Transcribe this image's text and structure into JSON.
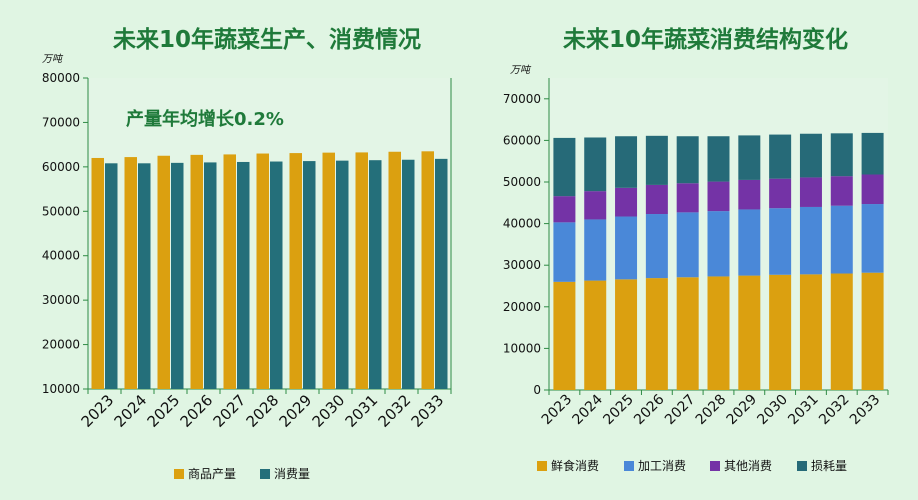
{
  "chart_data": [
    {
      "type": "bar",
      "title": "未来10年蔬菜生产、消费情况",
      "unit_label": "万吨",
      "annotation": "产量年均增长0.2%",
      "categories": [
        "2023",
        "2024",
        "2025",
        "2026",
        "2027",
        "2028",
        "2029",
        "2030",
        "2031",
        "2032",
        "2033"
      ],
      "ylim": [
        10000,
        80000
      ],
      "yticks": [
        10000,
        20000,
        30000,
        40000,
        50000,
        60000,
        70000,
        80000
      ],
      "series": [
        {
          "name": "商品产量",
          "color": "#dba010",
          "values": [
            62000,
            62200,
            62500,
            62700,
            62800,
            63000,
            63100,
            63200,
            63250,
            63400,
            63500
          ]
        },
        {
          "name": "消费量",
          "color": "#246f7a",
          "values": [
            60800,
            60800,
            60900,
            61000,
            61100,
            61200,
            61300,
            61400,
            61500,
            61600,
            61800
          ]
        }
      ],
      "legend_position": "bottom"
    },
    {
      "type": "bar",
      "stacked": true,
      "title": "未来10年蔬菜消费结构变化",
      "unit_label": "万吨",
      "categories": [
        "2023",
        "2024",
        "2025",
        "2026",
        "2027",
        "2028",
        "2029",
        "2030",
        "2031",
        "2032",
        "2033"
      ],
      "ylim": [
        0,
        75000
      ],
      "yticks": [
        0,
        10000,
        20000,
        30000,
        40000,
        50000,
        60000,
        70000
      ],
      "series": [
        {
          "name": "鲜食消费",
          "color": "#dba010",
          "values": [
            26000,
            26300,
            26600,
            26900,
            27100,
            27300,
            27500,
            27700,
            27800,
            28000,
            28200
          ]
        },
        {
          "name": "加工消费",
          "color": "#4a88d8",
          "values": [
            14300,
            14700,
            15100,
            15400,
            15600,
            15700,
            15900,
            16000,
            16200,
            16300,
            16500
          ]
        },
        {
          "name": "其他消费",
          "color": "#7433a6",
          "values": [
            6300,
            6800,
            6900,
            7000,
            7000,
            7100,
            7100,
            7100,
            7100,
            7100,
            7100
          ]
        },
        {
          "name": "损耗量",
          "color": "#266a78",
          "values": [
            14000,
            12900,
            12400,
            11800,
            11300,
            10900,
            10700,
            10600,
            10500,
            10300,
            10000
          ]
        }
      ],
      "legend_position": "bottom"
    }
  ]
}
